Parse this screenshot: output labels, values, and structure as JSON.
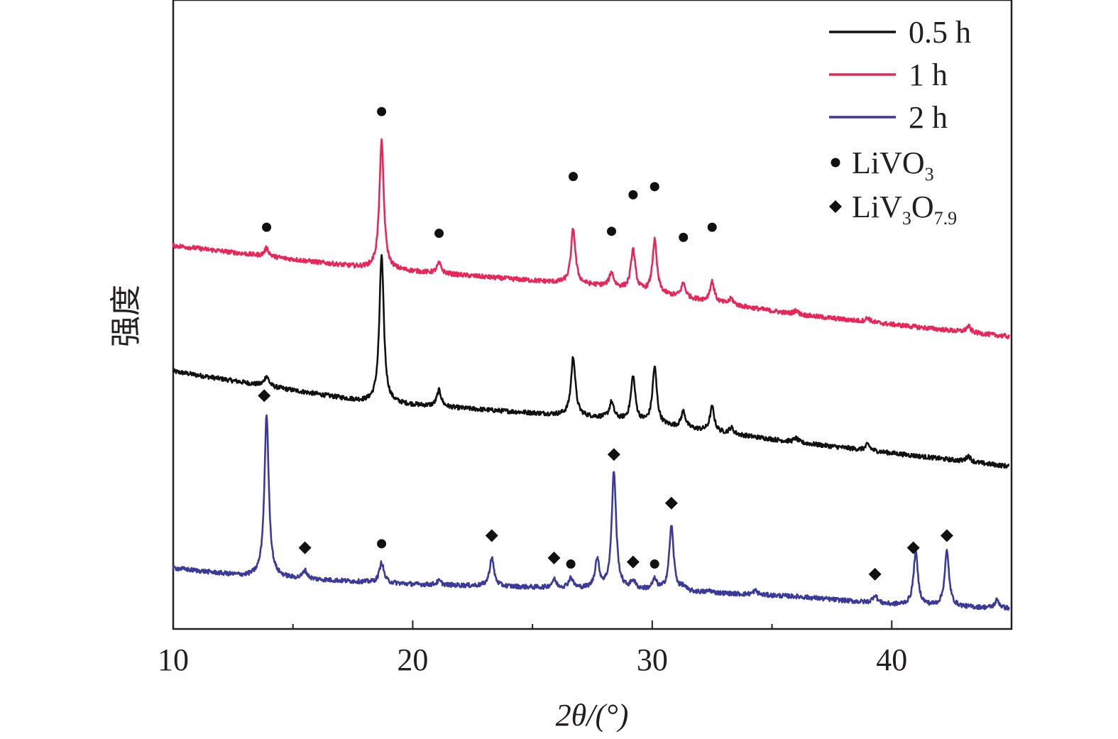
{
  "chart_data": {
    "type": "line",
    "title": "",
    "xlabel": "2θ/(°)",
    "ylabel": "强度",
    "xlim": [
      10,
      45
    ],
    "x_ticks": [
      "10",
      "20",
      "30",
      "40"
    ],
    "y_ticks": [],
    "grid": false,
    "legend_position": "top-right",
    "legend": [
      {
        "label": "0.5 h",
        "color": "#111111",
        "kind": "line"
      },
      {
        "label": "1 h",
        "color": "#e8265a",
        "kind": "line"
      },
      {
        "label": "2 h",
        "color": "#3b3a9a",
        "kind": "line"
      },
      {
        "label_main": "LiVO",
        "label_sub": "3",
        "kind": "circle"
      },
      {
        "label_main": "LiV",
        "label_sub": "3",
        "label_main2": "O",
        "label_sub2": "7.9",
        "kind": "diamond"
      }
    ],
    "series": [
      {
        "name": "0.5 h",
        "color": "#111111",
        "baseline": [
          [
            10,
            12.7
          ],
          [
            18,
            11.2
          ],
          [
            28,
            10.4
          ],
          [
            36,
            9.2
          ],
          [
            45,
            8.0
          ]
        ],
        "peaks": [
          [
            13.9,
            0.5
          ],
          [
            18.7,
            7.3
          ],
          [
            21.1,
            0.8
          ],
          [
            26.7,
            2.9
          ],
          [
            28.3,
            0.8
          ],
          [
            29.2,
            2.2
          ],
          [
            30.1,
            2.8
          ],
          [
            31.3,
            0.8
          ],
          [
            32.5,
            1.2
          ],
          [
            33.3,
            0.3
          ],
          [
            36.0,
            0.2
          ],
          [
            39.0,
            0.3
          ],
          [
            43.2,
            0.3
          ]
        ]
      },
      {
        "name": "1 h",
        "color": "#e8265a",
        "baseline": [
          [
            10,
            18.9
          ],
          [
            18,
            17.8
          ],
          [
            28,
            16.9
          ],
          [
            36,
            15.5
          ],
          [
            45,
            14.4
          ]
        ],
        "peaks": [
          [
            13.9,
            0.4
          ],
          [
            18.7,
            6.3
          ],
          [
            21.1,
            0.5
          ],
          [
            26.7,
            2.7
          ],
          [
            28.3,
            0.7
          ],
          [
            29.2,
            2.0
          ],
          [
            30.1,
            2.6
          ],
          [
            31.3,
            0.7
          ],
          [
            32.5,
            1.0
          ],
          [
            33.3,
            0.3
          ],
          [
            36.0,
            0.2
          ],
          [
            39.0,
            0.2
          ],
          [
            43.2,
            0.3
          ]
        ]
      },
      {
        "name": "2 h",
        "color": "#3b3a9a",
        "baseline": [
          [
            10,
            3.0
          ],
          [
            13,
            2.6
          ],
          [
            20,
            2.2
          ],
          [
            30,
            1.9
          ],
          [
            36,
            1.6
          ],
          [
            40,
            1.2
          ],
          [
            45,
            1.0
          ]
        ],
        "peaks": [
          [
            13.9,
            8.0
          ],
          [
            15.5,
            0.4
          ],
          [
            18.7,
            1.0
          ],
          [
            21.1,
            0.2
          ],
          [
            23.3,
            1.4
          ],
          [
            25.9,
            0.4
          ],
          [
            26.6,
            0.5
          ],
          [
            27.7,
            1.4
          ],
          [
            28.4,
            5.8
          ],
          [
            29.2,
            0.4
          ],
          [
            30.1,
            0.5
          ],
          [
            30.8,
            3.2
          ],
          [
            31.3,
            0.2
          ],
          [
            32.4,
            0.1
          ],
          [
            34.3,
            0.2
          ],
          [
            39.3,
            0.4
          ],
          [
            41.0,
            2.6
          ],
          [
            42.3,
            2.7
          ],
          [
            44.4,
            0.4
          ]
        ]
      }
    ],
    "markers": {
      "circle": [
        {
          "x": 13.9,
          "y": 19.8
        },
        {
          "x": 18.7,
          "y": 25.5
        },
        {
          "x": 21.1,
          "y": 19.5
        },
        {
          "x": 26.7,
          "y": 22.3
        },
        {
          "x": 28.3,
          "y": 19.6
        },
        {
          "x": 29.2,
          "y": 21.4
        },
        {
          "x": 30.1,
          "y": 21.8
        },
        {
          "x": 31.3,
          "y": 19.3
        },
        {
          "x": 32.5,
          "y": 19.8
        },
        {
          "x": 18.7,
          "y": 4.2
        },
        {
          "x": 26.6,
          "y": 3.2
        },
        {
          "x": 30.1,
          "y": 3.2
        }
      ],
      "diamond": [
        {
          "x": 13.8,
          "y": 11.5
        },
        {
          "x": 15.5,
          "y": 4.0
        },
        {
          "x": 23.3,
          "y": 4.6
        },
        {
          "x": 25.9,
          "y": 3.5
        },
        {
          "x": 28.4,
          "y": 8.6
        },
        {
          "x": 29.2,
          "y": 3.3
        },
        {
          "x": 30.8,
          "y": 6.2
        },
        {
          "x": 39.3,
          "y": 2.7
        },
        {
          "x": 40.9,
          "y": 4.0
        },
        {
          "x": 42.3,
          "y": 4.6
        }
      ]
    }
  }
}
